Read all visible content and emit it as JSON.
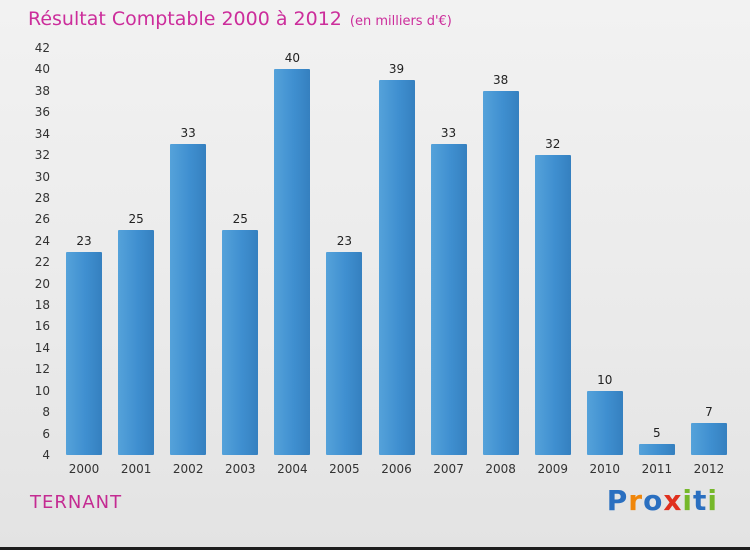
{
  "chart_data": {
    "type": "bar",
    "title": "Résultat Comptable 2000 à 2012",
    "subtitle": "(en milliers d'€)",
    "categories": [
      "2000",
      "2001",
      "2002",
      "2003",
      "2004",
      "2005",
      "2006",
      "2007",
      "2008",
      "2009",
      "2010",
      "2011",
      "2012"
    ],
    "values": [
      23,
      25,
      33,
      25,
      40,
      23,
      39,
      33,
      38,
      32,
      10,
      5,
      7
    ],
    "xlabel": "",
    "ylabel": "",
    "ylim": [
      4,
      42
    ],
    "ytick_step": 2,
    "grid": false,
    "legend": "none",
    "bar_color": "#3f8fd0",
    "value_label_color": "#222222",
    "title_color": "#cc2d9b"
  },
  "footer": {
    "entity": "TERNANT",
    "logo_text": "Proxiti",
    "logo_letters": [
      {
        "char": "P",
        "color": "#2a6fc0"
      },
      {
        "char": "r",
        "color": "#f0860a"
      },
      {
        "char": "o",
        "color": "#2a6fc0"
      },
      {
        "char": "x",
        "color": "#e0301e"
      },
      {
        "char": "i",
        "color": "#76b82a"
      },
      {
        "char": "t",
        "color": "#2a6fc0"
      },
      {
        "char": "i",
        "color": "#76b82a"
      }
    ]
  }
}
